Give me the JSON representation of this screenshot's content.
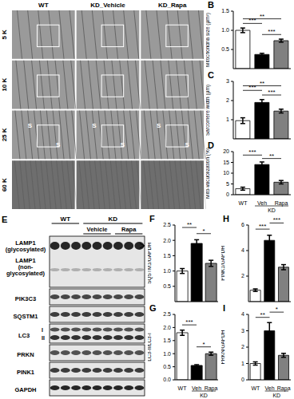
{
  "em_panel": {
    "columns": [
      "WT",
      "KD_Vehicle",
      "KD_Rapa"
    ],
    "rows": [
      "5 K",
      "10 K",
      "25 K",
      "60 K"
    ],
    "marks": [
      "S",
      "S",
      "S",
      "S",
      "S",
      "S"
    ]
  },
  "blot_panel": {
    "panel": "E",
    "groups": [
      "WT",
      "KD"
    ],
    "subgroups": [
      "Vehicle",
      "Rapa"
    ],
    "rows": [
      [
        "LAMP1",
        "(glycosylated)"
      ],
      [
        "LAMP1",
        "(non-",
        "glycosylated)"
      ],
      [
        "PIK3C3"
      ],
      [
        "SQSTM1"
      ],
      [
        "LC3"
      ],
      [
        "PRKN"
      ],
      [
        "PINK1"
      ],
      [
        "GAPDH"
      ]
    ],
    "lc3_bands": [
      "I",
      "II"
    ]
  },
  "chart_data": [
    {
      "panel": "B",
      "type": "bar",
      "ylabel": "Mitochondria size (µm²)",
      "categories": [
        null,
        null,
        null
      ],
      "values": [
        1.0,
        0.37,
        0.73
      ],
      "errors": [
        0.06,
        0.03,
        0.04
      ],
      "colors": [
        "#ffffff",
        "#000000",
        "#808080"
      ],
      "ylim": [
        0,
        1.5
      ],
      "yticks": [
        {
          "value": 0,
          "label": "0.0"
        },
        {
          "value": 0.5,
          "label": "0.5"
        },
        {
          "value": 1,
          "label": "1.0"
        },
        {
          "value": 1.5,
          "label": "1.5"
        }
      ],
      "tick_labels": "y",
      "annotations": [
        {
          "from": 1,
          "to": 2,
          "label": "***"
        },
        {
          "from": 0,
          "to": 1,
          "label": "***"
        },
        {
          "from": 0,
          "to": 2,
          "label": "**"
        }
      ]
    },
    {
      "panel": "C",
      "type": "bar",
      "ylabel": "Sarcomere width (µm)",
      "categories": [
        null,
        null,
        null
      ],
      "values": [
        0.95,
        1.9,
        1.45
      ],
      "errors": [
        0.15,
        0.15,
        0.1
      ],
      "colors": [
        "#ffffff",
        "#000000",
        "#808080"
      ],
      "ylim": [
        0,
        3
      ],
      "yticks": [
        0,
        1,
        2,
        3
      ],
      "tick_labels": "y",
      "annotations": [
        {
          "from": 1,
          "to": 2,
          "label": "***"
        },
        {
          "from": 0,
          "to": 1,
          "label": "***"
        },
        {
          "from": 0,
          "to": 2,
          "label": "**"
        }
      ]
    },
    {
      "panel": "D",
      "type": "bar",
      "ylabel": "Mito-vacuolization (%)",
      "categories": [
        "WT",
        "Veh",
        "Rapa"
      ],
      "group": {
        "label": "KD",
        "from": 1,
        "to": 2
      },
      "values": [
        2.8,
        14,
        5.8
      ],
      "errors": [
        0.7,
        1.2,
        0.8
      ],
      "colors": [
        "#ffffff",
        "#000000",
        "#808080"
      ],
      "ylim": [
        0,
        20
      ],
      "yticks": [
        0,
        5,
        10,
        15,
        20
      ],
      "annotations": [
        {
          "from": 1,
          "to": 2,
          "label": "**"
        },
        {
          "from": 0,
          "to": 1,
          "label": "***"
        }
      ]
    },
    {
      "panel": "F",
      "type": "bar",
      "ylabel": "SQSTM1/GAPDH",
      "categories": [
        null,
        null,
        null
      ],
      "values": [
        1.0,
        1.9,
        1.25
      ],
      "errors": [
        0.08,
        0.12,
        0.1
      ],
      "colors": [
        "#ffffff",
        "#000000",
        "#808080"
      ],
      "ylim": [
        0,
        2.5
      ],
      "yticks": [
        {
          "value": 0,
          "label": "0.0"
        },
        {
          "value": 0.5,
          "label": "0.5"
        },
        {
          "value": 1,
          "label": "1.0"
        },
        {
          "value": 1.5,
          "label": "1.5"
        },
        {
          "value": 2,
          "label": "2.0"
        },
        {
          "value": 2.5,
          "label": "2.5"
        }
      ],
      "tick_labels": "y",
      "annotations": [
        {
          "from": 1,
          "to": 2,
          "label": "*"
        },
        {
          "from": 0,
          "to": 1,
          "label": "**"
        }
      ]
    },
    {
      "panel": "G",
      "type": "bar",
      "ylabel": "LC3-II/LC3-I",
      "categories": [
        "WT",
        "Veh",
        "Rapa"
      ],
      "group": {
        "label": "KD",
        "from": 1,
        "to": 2
      },
      "values": [
        1.8,
        0.55,
        1.0
      ],
      "errors": [
        0.1,
        0.03,
        0.06
      ],
      "colors": [
        "#ffffff",
        "#000000",
        "#808080"
      ],
      "ylim": [
        0,
        2.5
      ],
      "yticks": [
        {
          "value": 0,
          "label": "0.0"
        },
        {
          "value": 0.5,
          "label": "0.5"
        },
        {
          "value": 1,
          "label": "1.0"
        },
        {
          "value": 1.5,
          "label": "1.5"
        },
        {
          "value": 2,
          "label": "2.0"
        },
        {
          "value": 2.5,
          "label": "2.5"
        }
      ],
      "annotations": [
        {
          "from": 1,
          "to": 2,
          "label": "*"
        },
        {
          "from": 0,
          "to": 1,
          "label": "***"
        }
      ]
    },
    {
      "panel": "H",
      "type": "bar",
      "ylabel": "PINK1/GAPDH",
      "categories": [
        null,
        null,
        null
      ],
      "values": [
        0.9,
        4.8,
        2.7
      ],
      "errors": [
        0.1,
        0.4,
        0.2
      ],
      "colors": [
        "#ffffff",
        "#000000",
        "#808080"
      ],
      "ylim": [
        0,
        6
      ],
      "yticks": [
        0,
        2,
        4,
        6
      ],
      "tick_labels": "y",
      "annotations": [
        {
          "from": 0,
          "to": 1,
          "label": "***"
        },
        {
          "from": 1,
          "to": 2,
          "label": "***"
        }
      ]
    },
    {
      "panel": "I",
      "type": "bar",
      "ylabel": "PRKN/GAPDH",
      "categories": [
        "WT",
        "Veh",
        "Rapa"
      ],
      "group": {
        "label": "KD",
        "from": 1,
        "to": 2
      },
      "values": [
        1.0,
        3.0,
        1.5
      ],
      "errors": [
        0.1,
        0.5,
        0.12
      ],
      "colors": [
        "#ffffff",
        "#000000",
        "#808080"
      ],
      "ylim": [
        0,
        4
      ],
      "yticks": [
        0,
        1,
        2,
        3,
        4
      ],
      "annotations": [
        {
          "from": 0,
          "to": 1,
          "label": "**"
        },
        {
          "from": 1,
          "to": 2,
          "label": "*"
        }
      ]
    }
  ]
}
